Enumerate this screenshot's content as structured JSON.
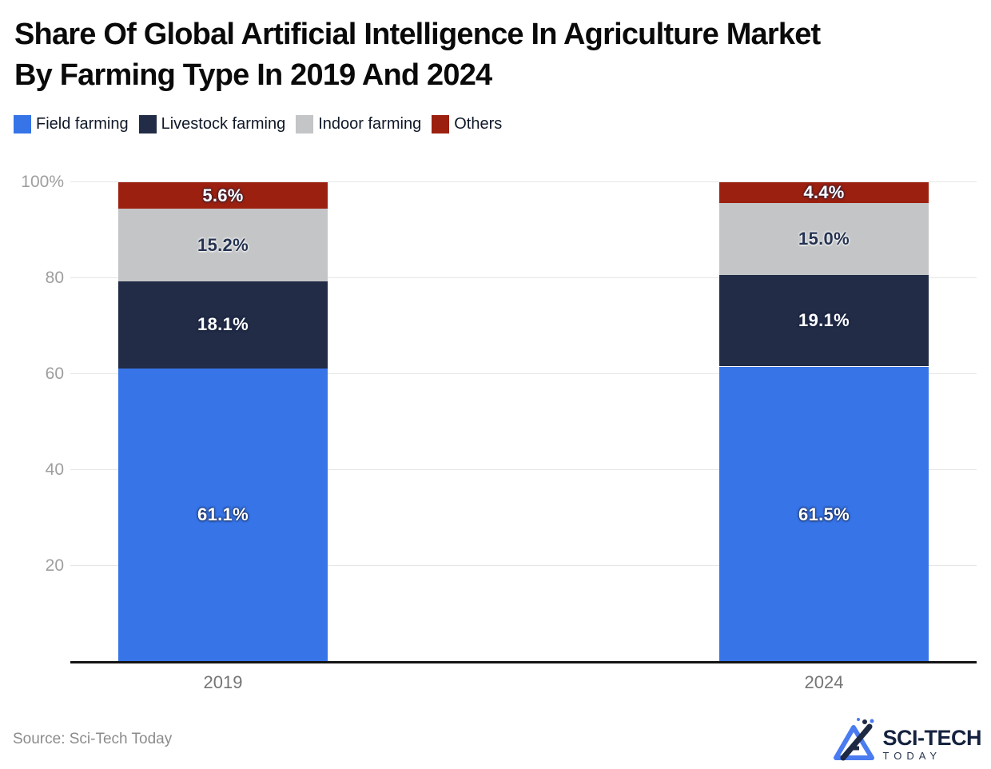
{
  "title_lines": [
    "Share Of Global Artificial Intelligence In Agriculture Market",
    "By Farming Type In 2019 And 2024"
  ],
  "source": "Source: Sci-Tech Today",
  "brand": {
    "name": "SCI-TECH",
    "sub": "TODAY"
  },
  "colors": {
    "field_farming": "#3674e8",
    "livestock_farming": "#222c46",
    "indoor_farming": "#c4c5c7",
    "others": "#9c200f",
    "gridline": "#e6e6e6",
    "axis_line": "#141414",
    "tick_label": "#9e9e9e",
    "title_text": "#0a0a0a",
    "source_text": "#8c8c8c",
    "brand_navy": "#15223f",
    "brand_blue": "#4a7bf0"
  },
  "chart_data": {
    "type": "bar",
    "subtype": "stacked-percentage",
    "title": "Share Of Global Artificial Intelligence In Agriculture Market By Farming Type In 2019 And 2024",
    "categories": [
      "2019",
      "2024"
    ],
    "series": [
      {
        "name": "Field farming",
        "color": "#3674e8",
        "values": [
          61.1,
          61.5
        ]
      },
      {
        "name": "Livestock farming",
        "color": "#222c46",
        "values": [
          18.1,
          19.1
        ]
      },
      {
        "name": "Indoor farming",
        "color": "#c4c5c7",
        "values": [
          15.2,
          15.0
        ]
      },
      {
        "name": "Others",
        "color": "#9c200f",
        "values": [
          5.6,
          4.4
        ]
      }
    ],
    "value_label_format": "percent-one-decimal",
    "xlabel": "",
    "ylabel": "",
    "ylim": [
      0,
      100
    ],
    "yticks": [
      {
        "value": 100,
        "label": "100%"
      },
      {
        "value": 80,
        "label": "80"
      },
      {
        "value": 60,
        "label": "60"
      },
      {
        "value": 40,
        "label": "40"
      },
      {
        "value": 20,
        "label": "20"
      }
    ],
    "grid": true,
    "legend_position": "top"
  }
}
